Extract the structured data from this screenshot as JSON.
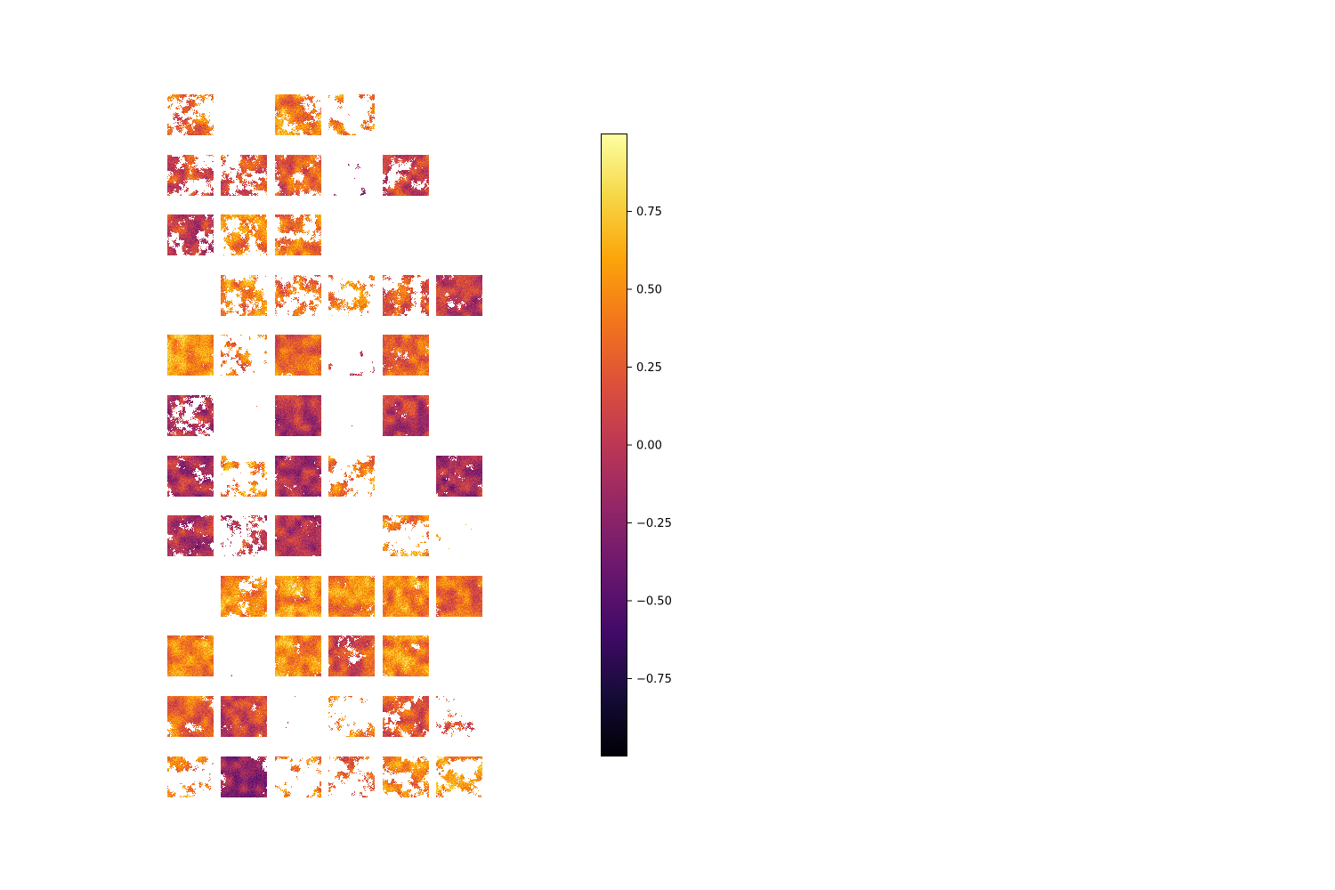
{
  "chart_data": {
    "type": "heatmap",
    "title": "",
    "grid": {
      "rows": 12,
      "cols": 6
    },
    "colormap": "inferno",
    "vmin": -1.0,
    "vmax": 1.0,
    "colorbar": {
      "ticks": [
        0.75,
        0.5,
        0.25,
        0.0,
        -0.25,
        -0.5,
        -0.75
      ],
      "tick_labels": [
        "0.75",
        "0.50",
        "0.25",
        "0.00",
        "−0.25",
        "−0.50",
        "−0.75"
      ]
    },
    "panels": [
      [
        {
          "coverage": 0.45,
          "mean": 0.35
        },
        {
          "coverage": 0.0,
          "mean": 0.0
        },
        {
          "coverage": 0.5,
          "mean": 0.45
        },
        {
          "coverage": 0.35,
          "mean": 0.45
        },
        {
          "coverage": 0.0,
          "mean": 0.0
        },
        {
          "coverage": 0.0,
          "mean": 0.0
        }
      ],
      [
        {
          "coverage": 0.55,
          "mean": 0.2
        },
        {
          "coverage": 0.55,
          "mean": 0.25
        },
        {
          "coverage": 0.65,
          "mean": 0.25
        },
        {
          "coverage": 0.15,
          "mean": -0.1
        },
        {
          "coverage": 0.6,
          "mean": 0.1
        },
        {
          "coverage": 0.0,
          "mean": 0.0
        }
      ],
      [
        {
          "coverage": 0.7,
          "mean": 0.05
        },
        {
          "coverage": 0.5,
          "mean": 0.45
        },
        {
          "coverage": 0.6,
          "mean": 0.45
        },
        {
          "coverage": 0.0,
          "mean": 0.0
        },
        {
          "coverage": 0.0,
          "mean": 0.0
        },
        {
          "coverage": 0.0,
          "mean": 0.0
        }
      ],
      [
        {
          "coverage": 0.02,
          "mean": 0.1
        },
        {
          "coverage": 0.55,
          "mean": 0.45
        },
        {
          "coverage": 0.45,
          "mean": 0.35
        },
        {
          "coverage": 0.45,
          "mean": 0.45
        },
        {
          "coverage": 0.5,
          "mean": 0.2
        },
        {
          "coverage": 0.75,
          "mean": 0.0
        }
      ],
      [
        {
          "coverage": 0.85,
          "mean": 0.55
        },
        {
          "coverage": 0.4,
          "mean": 0.4
        },
        {
          "coverage": 0.85,
          "mean": 0.3
        },
        {
          "coverage": 0.2,
          "mean": -0.05
        },
        {
          "coverage": 0.85,
          "mean": 0.35
        },
        {
          "coverage": 0.0,
          "mean": 0.0
        }
      ],
      [
        {
          "coverage": 0.6,
          "mean": -0.05
        },
        {
          "coverage": 0.03,
          "mean": 0.2
        },
        {
          "coverage": 0.85,
          "mean": -0.05
        },
        {
          "coverage": 0.08,
          "mean": -0.3
        },
        {
          "coverage": 0.85,
          "mean": 0.0
        },
        {
          "coverage": 0.0,
          "mean": 0.0
        }
      ],
      [
        {
          "coverage": 0.8,
          "mean": -0.05
        },
        {
          "coverage": 0.45,
          "mean": 0.45
        },
        {
          "coverage": 0.8,
          "mean": -0.1
        },
        {
          "coverage": 0.45,
          "mean": 0.45
        },
        {
          "coverage": 0.04,
          "mean": 0.4
        },
        {
          "coverage": 0.8,
          "mean": -0.1
        }
      ],
      [
        {
          "coverage": 0.75,
          "mean": -0.05
        },
        {
          "coverage": 0.45,
          "mean": 0.05
        },
        {
          "coverage": 0.85,
          "mean": -0.05
        },
        {
          "coverage": 0.02,
          "mean": 0.3
        },
        {
          "coverage": 0.45,
          "mean": 0.45
        },
        {
          "coverage": 0.12,
          "mean": 0.55
        }
      ],
      [
        {
          "coverage": 0.0,
          "mean": 0.0
        },
        {
          "coverage": 0.6,
          "mean": 0.5
        },
        {
          "coverage": 0.8,
          "mean": 0.5
        },
        {
          "coverage": 0.8,
          "mean": 0.45
        },
        {
          "coverage": 0.8,
          "mean": 0.45
        },
        {
          "coverage": 0.8,
          "mean": 0.35
        }
      ],
      [
        {
          "coverage": 0.8,
          "mean": 0.45
        },
        {
          "coverage": 0.06,
          "mean": 0.4
        },
        {
          "coverage": 0.8,
          "mean": 0.45
        },
        {
          "coverage": 0.8,
          "mean": 0.15
        },
        {
          "coverage": 0.8,
          "mean": 0.45
        },
        {
          "coverage": 0.0,
          "mean": 0.0
        }
      ],
      [
        {
          "coverage": 0.7,
          "mean": 0.3
        },
        {
          "coverage": 0.8,
          "mean": 0.1
        },
        {
          "coverage": 0.05,
          "mean": -0.05
        },
        {
          "coverage": 0.4,
          "mean": 0.5
        },
        {
          "coverage": 0.6,
          "mean": 0.2
        },
        {
          "coverage": 0.3,
          "mean": 0.3
        }
      ],
      [
        {
          "coverage": 0.45,
          "mean": 0.45
        },
        {
          "coverage": 0.65,
          "mean": -0.2
        },
        {
          "coverage": 0.35,
          "mean": 0.45
        },
        {
          "coverage": 0.4,
          "mean": 0.25
        },
        {
          "coverage": 0.5,
          "mean": 0.45
        },
        {
          "coverage": 0.4,
          "mean": 0.55
        }
      ]
    ]
  }
}
